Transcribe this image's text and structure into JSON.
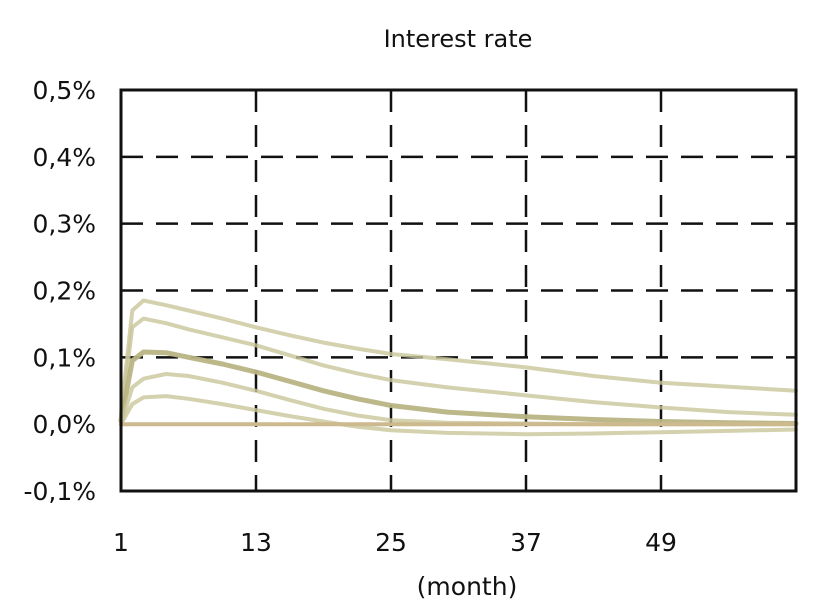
{
  "chart_data": {
    "type": "line",
    "title": "Interest rate",
    "xlabel": "(month)",
    "ylabel": "",
    "x_ticks": [
      "1",
      "13",
      "25",
      "37",
      "49"
    ],
    "y_ticks": [
      "-0,1%",
      "0,0%",
      "0,1%",
      "0,2%",
      "0,3%",
      "0,4%",
      "0,5%"
    ],
    "xlim": [
      1,
      61
    ],
    "ylim": [
      -0.1,
      0.5
    ],
    "grid": true,
    "legend": "none",
    "colors": {
      "band": "#c9c69a",
      "median": "#b8b483",
      "zero": "#cdb98e",
      "grid": "#111111",
      "axis": "#111111"
    },
    "x": [
      1,
      2,
      3,
      5,
      7,
      10,
      13,
      16,
      19,
      22,
      25,
      30,
      37,
      43,
      49,
      55,
      61
    ],
    "series": [
      {
        "values": [
          0.015,
          0.17,
          0.185,
          0.178,
          0.17,
          0.158,
          0.145,
          0.133,
          0.122,
          0.113,
          0.105,
          0.097,
          0.085,
          0.072,
          0.062,
          0.056,
          0.05
        ]
      },
      {
        "values": [
          0.01,
          0.145,
          0.158,
          0.151,
          0.142,
          0.13,
          0.118,
          0.103,
          0.088,
          0.076,
          0.066,
          0.055,
          0.043,
          0.033,
          0.025,
          0.018,
          0.014
        ]
      },
      {
        "values": [
          0.005,
          0.095,
          0.108,
          0.107,
          0.1,
          0.09,
          0.078,
          0.064,
          0.05,
          0.038,
          0.028,
          0.018,
          0.011,
          0.007,
          0.004,
          0.002,
          0.001
        ]
      },
      {
        "values": [
          0.0,
          0.055,
          0.068,
          0.075,
          0.072,
          0.062,
          0.05,
          0.036,
          0.023,
          0.013,
          0.006,
          0.002,
          0.001,
          0.0,
          0.0,
          0.0,
          0.0
        ]
      },
      {
        "values": [
          0.0,
          0.03,
          0.04,
          0.042,
          0.038,
          0.03,
          0.021,
          0.012,
          0.004,
          -0.004,
          -0.009,
          -0.013,
          -0.015,
          -0.014,
          -0.012,
          -0.01,
          -0.008
        ]
      },
      {
        "values": [
          0.0,
          0.0,
          0.0,
          0.0,
          0.0,
          0.0,
          0.0,
          0.0,
          0.0,
          0.0,
          0.0,
          0.0,
          0.0,
          0.0,
          0.0,
          0.0,
          0.0
        ]
      }
    ]
  }
}
